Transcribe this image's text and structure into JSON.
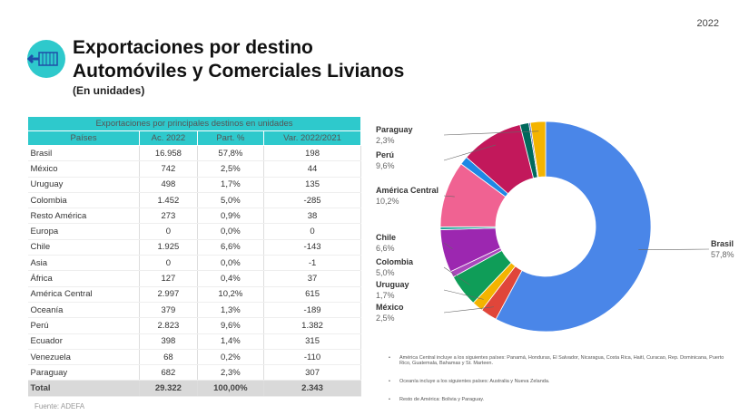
{
  "year": "2022",
  "title_line1": "Exportaciones por destino",
  "title_line2": "Automóviles y Comerciales Livianos",
  "subtitle": "(En unidades)",
  "table": {
    "caption": "Exportaciones por principales destinos en unidades",
    "headers": [
      "Países",
      "Ac. 2022",
      "Part. %",
      "Var. 2022/2021"
    ],
    "rows": [
      [
        "Brasil",
        "16.958",
        "57,8%",
        "198"
      ],
      [
        "México",
        "742",
        "2,5%",
        "44"
      ],
      [
        "Uruguay",
        "498",
        "1,7%",
        "135"
      ],
      [
        "Colombia",
        "1.452",
        "5,0%",
        "-285"
      ],
      [
        "Resto América",
        "273",
        "0,9%",
        "38"
      ],
      [
        "Europa",
        "0",
        "0,0%",
        "0"
      ],
      [
        "Chile",
        "1.925",
        "6,6%",
        "-143"
      ],
      [
        "Asia",
        "0",
        "0,0%",
        "-1"
      ],
      [
        "África",
        "127",
        "0,4%",
        "37"
      ],
      [
        "América Central",
        "2.997",
        "10,2%",
        "615"
      ],
      [
        "Oceanía",
        "379",
        "1,3%",
        "-189"
      ],
      [
        "Perú",
        "2.823",
        "9,6%",
        "1.382"
      ],
      [
        "Ecuador",
        "398",
        "1,4%",
        "315"
      ],
      [
        "Venezuela",
        "68",
        "0,2%",
        "-110"
      ],
      [
        "Paraguay",
        "682",
        "2,3%",
        "307"
      ]
    ],
    "total": [
      "Total",
      "29.322",
      "100,00%",
      "2.343"
    ]
  },
  "source": "Fuente: ADEFA",
  "notes": [
    "América Central incluye a los siguientes países: Panamá, Honduras, El Salvador, Nicaragua, Costa Rica, Haití, Curacao, Rep. Dominicana, Puerto Rico, Guatemala, Bahamas y St. Marteen.",
    "Oceanía incluye a los siguientes países: Australia y Nueva Zelanda.",
    "Resto de América: Bolivia y Paraguay."
  ],
  "chart_data": {
    "type": "pie",
    "donut": true,
    "categories": [
      "Brasil",
      "México",
      "Uruguay",
      "Colombia",
      "Resto América",
      "Europa",
      "Chile",
      "Asia",
      "África",
      "América Central",
      "Oceanía",
      "Perú",
      "Ecuador",
      "Venezuela",
      "Paraguay"
    ],
    "values": [
      16958,
      742,
      498,
      1452,
      273,
      0,
      1925,
      0,
      127,
      2997,
      379,
      2823,
      398,
      68,
      682
    ],
    "colors": [
      "#4a86e8",
      "#e0463a",
      "#f4b400",
      "#0f9d58",
      "#ab47bc",
      "#00acc1",
      "#9c27b0",
      "#5c6bc0",
      "#26a69a",
      "#f06292",
      "#1e88e5",
      "#c2185b",
      "#00695c",
      "#3949ab",
      "#f4b400"
    ],
    "labels": [
      {
        "name": "Brasil",
        "pct": "57,8%"
      },
      {
        "name": "México",
        "pct": "2,5%"
      },
      {
        "name": "Uruguay",
        "pct": "1,7%"
      },
      {
        "name": "Colombia",
        "pct": "5,0%"
      },
      {
        "name": "Chile",
        "pct": "6,6%"
      },
      {
        "name": "América Central",
        "pct": "10,2%"
      },
      {
        "name": "Perú",
        "pct": "9,6%"
      },
      {
        "name": "Paraguay",
        "pct": "2,3%"
      }
    ]
  }
}
